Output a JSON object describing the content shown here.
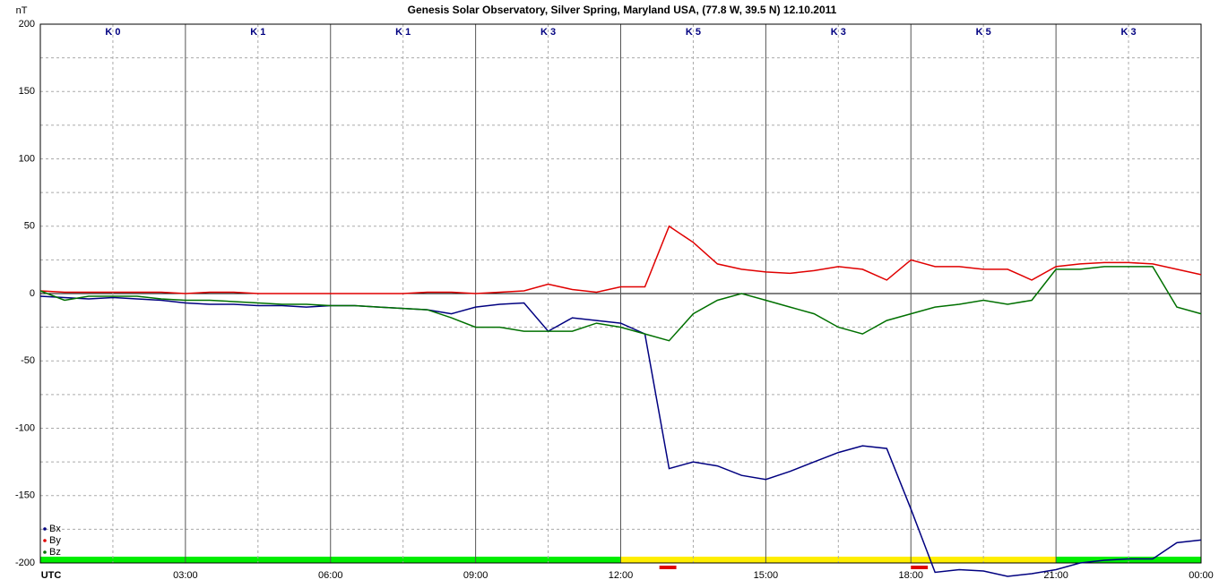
{
  "chart_data": {
    "type": "line",
    "title": "Genesis Solar Observatory, Silver Spring, Maryland USA, (77.8 W, 39.5 N)  12.10.2011",
    "y_label": "nT",
    "k_labels": [
      "K 0",
      "K 1",
      "K 1",
      "K 3",
      "K 5",
      "K 3",
      "K 5",
      "K 3"
    ],
    "x": [
      0,
      0.5,
      1,
      1.5,
      2,
      2.5,
      3,
      3.5,
      4,
      4.5,
      5,
      5.5,
      6,
      6.5,
      7,
      7.5,
      8,
      8.5,
      9,
      9.5,
      10,
      10.5,
      11,
      11.5,
      12,
      12.5,
      13,
      13.5,
      14,
      14.5,
      15,
      15.5,
      16,
      16.5,
      17,
      17.5,
      18,
      18.5,
      19,
      19.5,
      20,
      20.5,
      21,
      21.5,
      22,
      22.5,
      23,
      23.5,
      24
    ],
    "series": [
      {
        "name": "Bx",
        "color": "#000080",
        "values": [
          -2,
          -3,
          -4,
          -3,
          -4,
          -5,
          -7,
          -8,
          -8,
          -9,
          -9,
          -10,
          -9,
          -9,
          -10,
          -11,
          -12,
          -15,
          -10,
          -8,
          -7,
          -28,
          -18,
          -20,
          -22,
          -30,
          -130,
          -125,
          -128,
          -135,
          -138,
          -132,
          -125,
          -118,
          -113,
          -115,
          -160,
          -207,
          -205,
          -206,
          -210,
          -208,
          -205,
          -200,
          -198,
          -197,
          -197,
          -185,
          -183
        ]
      },
      {
        "name": "By",
        "color": "#e00000",
        "values": [
          2,
          1,
          1,
          1,
          1,
          1,
          0,
          1,
          1,
          0,
          0,
          0,
          0,
          0,
          0,
          0,
          1,
          1,
          0,
          1,
          2,
          7,
          3,
          1,
          5,
          5,
          50,
          38,
          22,
          18,
          16,
          15,
          17,
          20,
          18,
          10,
          25,
          20,
          20,
          18,
          18,
          10,
          20,
          22,
          23,
          23,
          22,
          18,
          14
        ]
      },
      {
        "name": "Bz",
        "color": "#007000",
        "values": [
          2,
          -5,
          -2,
          -2,
          -2,
          -4,
          -5,
          -5,
          -6,
          -7,
          -8,
          -8,
          -9,
          -9,
          -10,
          -11,
          -12,
          -18,
          -25,
          -25,
          -28,
          -28,
          -28,
          -22,
          -25,
          -30,
          -35,
          -15,
          -5,
          0,
          -5,
          -10,
          -15,
          -25,
          -30,
          -20,
          -15,
          -10,
          -8,
          -5,
          -8,
          -5,
          18,
          18,
          20,
          20,
          20,
          -10,
          -15
        ]
      }
    ],
    "xlim": [
      0,
      24
    ],
    "xticks": [
      {
        "value": 0,
        "label": "UTC"
      },
      {
        "value": 3,
        "label": "03:00"
      },
      {
        "value": 6,
        "label": "06:00"
      },
      {
        "value": 9,
        "label": "09:00"
      },
      {
        "value": 12,
        "label": "12:00"
      },
      {
        "value": 15,
        "label": "15:00"
      },
      {
        "value": 18,
        "label": "18:00"
      },
      {
        "value": 21,
        "label": "21:00"
      },
      {
        "value": 24,
        "label": "00:00"
      }
    ],
    "ylim": [
      -200,
      200
    ],
    "yticks": [
      -200,
      -150,
      -100,
      -50,
      0,
      50,
      100,
      150,
      200
    ],
    "grid": true,
    "legend": "bottom-left",
    "status_bar": [
      {
        "start": 0,
        "end": 12,
        "color": "#00ee00"
      },
      {
        "start": 12,
        "end": 18,
        "color": "#ffee00"
      },
      {
        "start": 18,
        "end": 21,
        "color": "#ffee00"
      },
      {
        "start": 21,
        "end": 24,
        "color": "#00ee00"
      }
    ],
    "alerts": [
      {
        "start": 12.8,
        "end": 13.15,
        "color": "#e00000"
      },
      {
        "start": 18.0,
        "end": 18.35,
        "color": "#e00000"
      }
    ]
  }
}
